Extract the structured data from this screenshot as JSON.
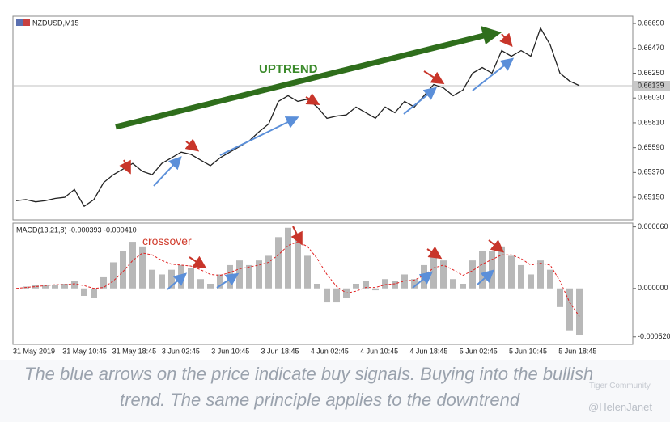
{
  "chart_data": [
    {
      "type": "line",
      "title": "NZDUSD,M15",
      "annotation": "UPTREND",
      "color": "#222222",
      "values": [
        0.6512,
        0.6513,
        0.6511,
        0.6512,
        0.6514,
        0.6515,
        0.6522,
        0.6507,
        0.6513,
        0.6528,
        0.6535,
        0.654,
        0.6545,
        0.6538,
        0.6535,
        0.6545,
        0.655,
        0.6555,
        0.6553,
        0.6548,
        0.6543,
        0.655,
        0.6555,
        0.656,
        0.6565,
        0.6573,
        0.658,
        0.66,
        0.6605,
        0.66,
        0.6602,
        0.6595,
        0.6585,
        0.6587,
        0.6588,
        0.6595,
        0.659,
        0.6585,
        0.6595,
        0.659,
        0.66,
        0.6595,
        0.6605,
        0.6615,
        0.6612,
        0.6605,
        0.661,
        0.6625,
        0.663,
        0.6625,
        0.6645,
        0.664,
        0.6645,
        0.664,
        0.6665,
        0.665,
        0.6625,
        0.6618,
        0.6614
      ],
      "current_price": 0.66139,
      "ylim": [
        0.6495,
        0.66755
      ],
      "yticks": [
        {
          "value": 0.6669,
          "label": "0.66690"
        },
        {
          "value": 0.6647,
          "label": "0.66470"
        },
        {
          "value": 0.6625,
          "label": "0.66250"
        },
        {
          "value": 0.6603,
          "label": "0.66030"
        },
        {
          "value": 0.6581,
          "label": "0.65810"
        },
        {
          "value": 0.6559,
          "label": "0.65590"
        },
        {
          "value": 0.6537,
          "label": "0.65370"
        },
        {
          "value": 0.6515,
          "label": "0.65150"
        }
      ]
    },
    {
      "type": "macd",
      "title": "MACD(13,21,8) -0.000393 -0.000410",
      "annotation": "crossover",
      "histogram": {
        "color": "#b8b8b8",
        "values": [
          0,
          2e-05,
          4e-05,
          4e-05,
          4e-05,
          5e-05,
          8e-05,
          -8e-05,
          -0.0001,
          0.00012,
          0.00028,
          0.0004,
          0.0005,
          0.00045,
          0.0002,
          0.00015,
          0.0002,
          0.00025,
          0.00022,
          0.0001,
          5e-05,
          0.00015,
          0.00025,
          0.0003,
          0.00025,
          0.0003,
          0.00035,
          0.00055,
          0.00065,
          0.00055,
          0.00035,
          5e-05,
          -0.00015,
          -0.00015,
          -0.0001,
          5e-05,
          8e-05,
          -2e-05,
          0.0001,
          8e-05,
          0.00015,
          0.0001,
          0.00025,
          0.0004,
          0.0003,
          0.0001,
          5e-05,
          0.0003,
          0.0004,
          0.0004,
          0.00045,
          0.00035,
          0.00025,
          0.00015,
          0.0003,
          0.0002,
          -0.0002,
          -0.00045,
          -0.0005
        ]
      },
      "signal": {
        "color": "#e02020",
        "values": [
          0,
          1e-05,
          2e-05,
          3e-05,
          4e-05,
          4e-05,
          5e-05,
          3e-05,
          0,
          1e-05,
          8e-05,
          0.00018,
          0.0003,
          0.00038,
          0.00036,
          0.0003,
          0.00026,
          0.00025,
          0.00024,
          0.0002,
          0.00015,
          0.00014,
          0.00017,
          0.00021,
          0.00023,
          0.00025,
          0.00028,
          0.00036,
          0.00046,
          0.0005,
          0.00045,
          0.00032,
          0.00015,
          2e-05,
          -5e-05,
          -3e-05,
          1e-05,
          1e-05,
          4e-05,
          5e-05,
          8e-05,
          9e-05,
          0.00014,
          0.00022,
          0.00025,
          0.0002,
          0.00014,
          0.00019,
          0.00026,
          0.00031,
          0.00036,
          0.00036,
          0.00032,
          0.00025,
          0.00027,
          0.00025,
          8e-05,
          -0.00015,
          -0.0003
        ]
      },
      "ylim": [
        -0.0006,
        0.0007
      ],
      "yticks": [
        {
          "value": 0.00066,
          "label": "0.000660"
        },
        {
          "value": 0,
          "label": "0.000000"
        },
        {
          "value": -0.00052,
          "label": "-0.000520"
        }
      ]
    }
  ],
  "x_axis_labels": [
    "31 May 2019",
    "31 May 10:45",
    "31 May 18:45",
    "3 Jun 02:45",
    "3 Jun 10:45",
    "3 Jun 18:45",
    "4 Jun 02:45",
    "4 Jun 10:45",
    "4 Jun 18:45",
    "5 Jun 02:45",
    "5 Jun 10:45",
    "5 Jun 18:45"
  ],
  "caption": [
    "The blue arrows on the price indicate buy signals. Buying into the bullish",
    "trend. The same principle applies to the downtrend"
  ],
  "watermark": [
    "Tiger Community",
    "@HelenJanet"
  ]
}
